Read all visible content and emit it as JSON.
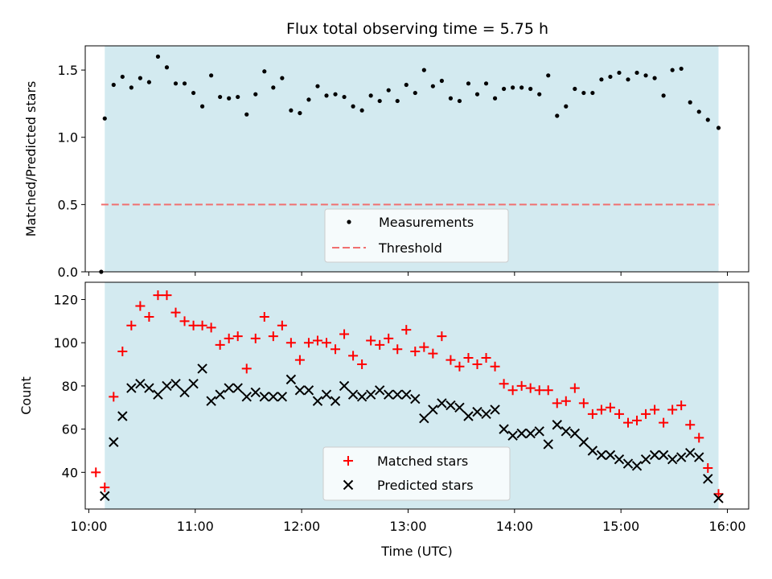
{
  "colors": {
    "shade": "#d3eaf0",
    "measurement": "#000000",
    "threshold": "#f07070",
    "matched": "#ff0000",
    "predicted": "#000000"
  },
  "chart_data": [
    {
      "type": "scatter",
      "title": "Flux total observing time = 5.75 h",
      "xlabel": "",
      "ylabel": "Matched/Predicted stars",
      "xlim": [
        "09:58",
        "16:12"
      ],
      "ylim": [
        0,
        1.68
      ],
      "yticks": [
        "0.0",
        "0.5",
        "1.0",
        "1.5"
      ],
      "shaded_span": [
        "10:09",
        "15:55"
      ],
      "threshold": 0.5,
      "threshold_span": [
        "10:07",
        "15:55"
      ],
      "legend": {
        "position": "lower-center",
        "entries": [
          "Measurements",
          "Threshold"
        ]
      },
      "series": [
        {
          "name": "Measurements",
          "marker": "dot",
          "x": [
            "10:07",
            "10:09",
            "10:14",
            "10:19",
            "10:24",
            "10:29",
            "10:34",
            "10:39",
            "10:44",
            "10:49",
            "10:54",
            "10:59",
            "11:04",
            "11:09",
            "11:14",
            "11:19",
            "11:24",
            "11:29",
            "11:34",
            "11:39",
            "11:44",
            "11:49",
            "11:54",
            "11:59",
            "12:04",
            "12:09",
            "12:14",
            "12:19",
            "12:24",
            "12:29",
            "12:34",
            "12:39",
            "12:44",
            "12:49",
            "12:54",
            "12:59",
            "13:04",
            "13:09",
            "13:14",
            "13:19",
            "13:24",
            "13:29",
            "13:34",
            "13:39",
            "13:44",
            "13:49",
            "13:54",
            "13:59",
            "14:04",
            "14:09",
            "14:14",
            "14:19",
            "14:24",
            "14:29",
            "14:34",
            "14:39",
            "14:44",
            "14:49",
            "14:54",
            "14:59",
            "15:04",
            "15:09",
            "15:14",
            "15:19",
            "15:24",
            "15:29",
            "15:34",
            "15:39",
            "15:44",
            "15:49",
            "15:55"
          ],
          "y": [
            0.0,
            1.14,
            1.39,
            1.45,
            1.37,
            1.44,
            1.41,
            1.6,
            1.52,
            1.4,
            1.4,
            1.33,
            1.23,
            1.46,
            1.3,
            1.29,
            1.3,
            1.17,
            1.32,
            1.49,
            1.37,
            1.44,
            1.2,
            1.18,
            1.28,
            1.38,
            1.31,
            1.32,
            1.3,
            1.23,
            1.2,
            1.31,
            1.27,
            1.35,
            1.27,
            1.39,
            1.33,
            1.5,
            1.38,
            1.42,
            1.29,
            1.27,
            1.4,
            1.32,
            1.4,
            1.29,
            1.36,
            1.37,
            1.37,
            1.36,
            1.32,
            1.46,
            1.16,
            1.23,
            1.36,
            1.33,
            1.33,
            1.43,
            1.45,
            1.48,
            1.43,
            1.48,
            1.46,
            1.44,
            1.31,
            1.5,
            1.51,
            1.26,
            1.19,
            1.13,
            1.07
          ]
        }
      ]
    },
    {
      "type": "scatter",
      "title": "",
      "xlabel": "Time (UTC)",
      "ylabel": "Count",
      "xlim": [
        "09:58",
        "16:12"
      ],
      "ylim": [
        23,
        128
      ],
      "yticks": [
        "40",
        "60",
        "80",
        "100",
        "120"
      ],
      "xticks": [
        "10:00",
        "11:00",
        "12:00",
        "13:00",
        "14:00",
        "15:00",
        "16:00"
      ],
      "shaded_span": [
        "10:09",
        "15:55"
      ],
      "legend": {
        "position": "lower-center",
        "entries": [
          "Matched stars",
          "Predicted stars"
        ]
      },
      "series": [
        {
          "name": "Matched stars",
          "marker": "plus",
          "x": [
            "10:04",
            "10:09",
            "10:14",
            "10:19",
            "10:24",
            "10:29",
            "10:34",
            "10:39",
            "10:44",
            "10:49",
            "10:54",
            "10:59",
            "11:04",
            "11:09",
            "11:14",
            "11:19",
            "11:24",
            "11:29",
            "11:34",
            "11:39",
            "11:44",
            "11:49",
            "11:54",
            "11:59",
            "12:04",
            "12:09",
            "12:14",
            "12:19",
            "12:24",
            "12:29",
            "12:34",
            "12:39",
            "12:44",
            "12:49",
            "12:54",
            "12:59",
            "13:04",
            "13:09",
            "13:14",
            "13:19",
            "13:24",
            "13:29",
            "13:34",
            "13:39",
            "13:44",
            "13:49",
            "13:54",
            "13:59",
            "14:04",
            "14:09",
            "14:14",
            "14:19",
            "14:24",
            "14:29",
            "14:34",
            "14:39",
            "14:44",
            "14:49",
            "14:54",
            "14:59",
            "15:04",
            "15:09",
            "15:14",
            "15:19",
            "15:24",
            "15:29",
            "15:34",
            "15:39",
            "15:44",
            "15:49",
            "15:55"
          ],
          "y": [
            40,
            33,
            75,
            96,
            108,
            117,
            112,
            122,
            122,
            114,
            110,
            108,
            108,
            107,
            99,
            102,
            103,
            88,
            102,
            112,
            103,
            108,
            100,
            92,
            100,
            101,
            100,
            97,
            104,
            94,
            90,
            101,
            99,
            102,
            97,
            106,
            96,
            98,
            95,
            103,
            92,
            89,
            93,
            90,
            93,
            89,
            81,
            78,
            80,
            79,
            78,
            78,
            72,
            73,
            79,
            72,
            67,
            69,
            70,
            67,
            63,
            64,
            67,
            69,
            63,
            69,
            71,
            62,
            56,
            42,
            30
          ]
        },
        {
          "name": "Predicted stars",
          "marker": "x",
          "x": [
            "10:09",
            "10:14",
            "10:19",
            "10:24",
            "10:29",
            "10:34",
            "10:39",
            "10:44",
            "10:49",
            "10:54",
            "10:59",
            "11:04",
            "11:09",
            "11:14",
            "11:19",
            "11:24",
            "11:29",
            "11:34",
            "11:39",
            "11:44",
            "11:49",
            "11:54",
            "11:59",
            "12:04",
            "12:09",
            "12:14",
            "12:19",
            "12:24",
            "12:29",
            "12:34",
            "12:39",
            "12:44",
            "12:49",
            "12:54",
            "12:59",
            "13:04",
            "13:09",
            "13:14",
            "13:19",
            "13:24",
            "13:29",
            "13:34",
            "13:39",
            "13:44",
            "13:49",
            "13:54",
            "13:59",
            "14:04",
            "14:09",
            "14:14",
            "14:19",
            "14:24",
            "14:29",
            "14:34",
            "14:39",
            "14:44",
            "14:49",
            "14:54",
            "14:59",
            "15:04",
            "15:09",
            "15:14",
            "15:19",
            "15:24",
            "15:29",
            "15:34",
            "15:39",
            "15:44",
            "15:49",
            "15:55"
          ],
          "y": [
            29,
            54,
            66,
            79,
            81,
            79,
            76,
            80,
            81,
            77,
            81,
            88,
            73,
            76,
            79,
            79,
            75,
            77,
            75,
            75,
            75,
            83,
            78,
            78,
            73,
            76,
            73,
            80,
            76,
            75,
            76,
            78,
            76,
            76,
            76,
            74,
            65,
            69,
            72,
            71,
            70,
            66,
            68,
            67,
            69,
            60,
            57,
            58,
            58,
            59,
            53,
            62,
            59,
            58,
            54,
            50,
            48,
            48,
            46,
            44,
            43,
            46,
            48,
            48,
            46,
            47,
            49,
            47,
            37,
            28
          ]
        }
      ]
    }
  ]
}
